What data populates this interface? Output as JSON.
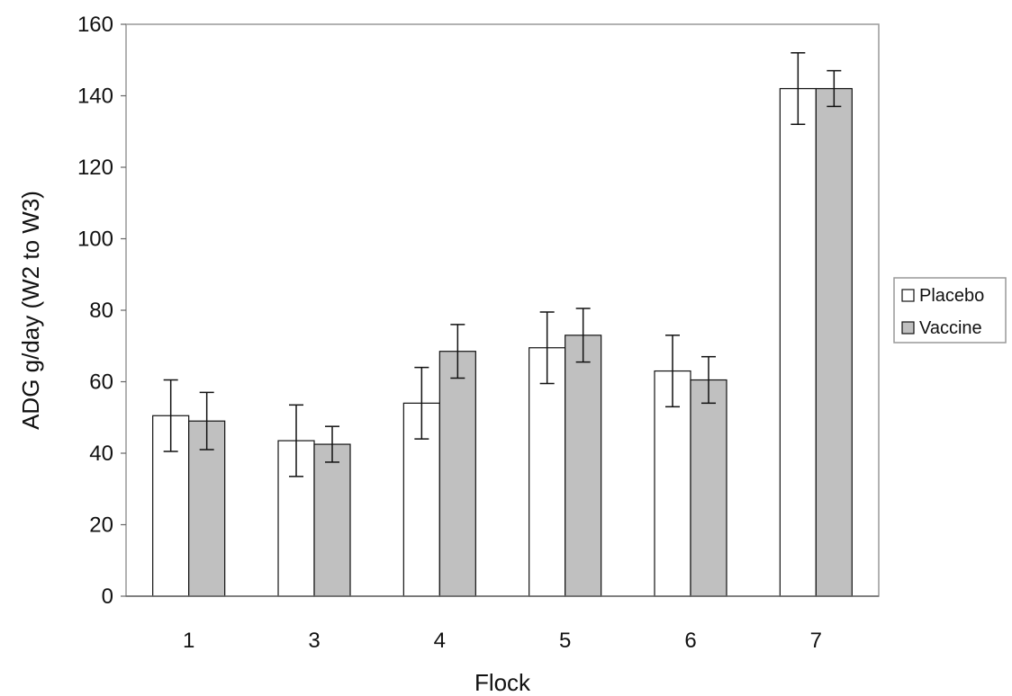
{
  "chart_data": {
    "type": "bar",
    "title": "",
    "xlabel": "Flock",
    "ylabel": "ADG g/day (W2 to W3)",
    "ylim": [
      0,
      160
    ],
    "yticks": [
      0,
      20,
      40,
      60,
      80,
      100,
      120,
      140,
      160
    ],
    "grid": false,
    "legend_position": "right",
    "categories": [
      "1",
      "3",
      "4",
      "5",
      "6",
      "7"
    ],
    "series": [
      {
        "name": "Placebo",
        "color": "#ffffff",
        "values": [
          50.5,
          43.5,
          54,
          69.5,
          63,
          142
        ],
        "errors": [
          10,
          10,
          10,
          10,
          10,
          10
        ]
      },
      {
        "name": "Vaccine",
        "color": "#c0c0c0",
        "values": [
          49,
          42.5,
          68.5,
          73,
          60.5,
          142
        ],
        "errors": [
          8,
          5,
          7.5,
          7.5,
          6.5,
          5
        ]
      }
    ]
  }
}
